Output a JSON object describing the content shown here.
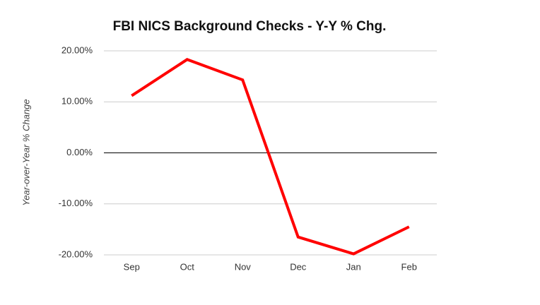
{
  "chart_data": {
    "type": "line",
    "title": "FBI NICS Background Checks - Y-Y % Chg.",
    "y_label": "Year-over-Year % Change",
    "categories": [
      "Sep",
      "Oct",
      "Nov",
      "Dec",
      "Jan",
      "Feb"
    ],
    "values": [
      11.2,
      18.3,
      14.3,
      -16.5,
      -19.8,
      -14.5
    ],
    "color": "#ff0000",
    "ylim": [
      -20,
      20
    ],
    "yticks": [
      {
        "value": -20,
        "label": "-20.00%"
      },
      {
        "value": -10,
        "label": "-10.00%"
      },
      {
        "value": 0,
        "label": "0.00%"
      },
      {
        "value": 10,
        "label": "10.00%"
      },
      {
        "value": 20,
        "label": "20.00%"
      }
    ],
    "grid": true
  }
}
